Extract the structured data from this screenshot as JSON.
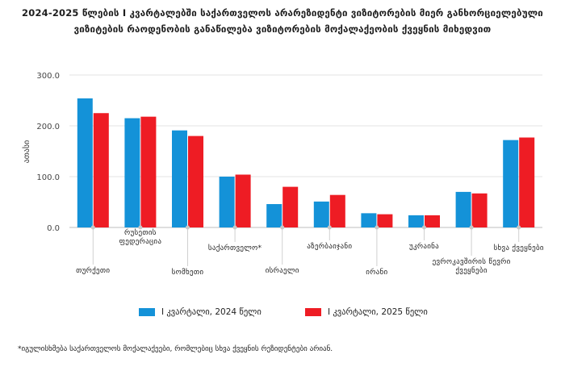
{
  "chart_data": {
    "type": "bar",
    "title": "2024-2025 წლების I კვარტალებში საქართველოს არარეზიდენტი ვიზიტორების მიერ განხორციელებული ვიზიტების რაოდენობის განაწილება ვიზიტორების მოქალაქეობის ქვეყნის მიხედვით",
    "ylabel": "ათასი",
    "ylim": [
      0,
      300
    ],
    "yticks": [
      "0.0",
      "100.0",
      "200.0",
      "300.0"
    ],
    "grid": true,
    "categories": [
      "თურქეთი",
      "რუსეთის ფედერაცია",
      "სომხეთი",
      "საქართველო*",
      "ისრაელი",
      "აზერბაიჯანი",
      "ირანი",
      "უკრაინა",
      "ევროკავშირის წევრი ქვეყნები",
      "სხვა ქვეყნები"
    ],
    "series": [
      {
        "name": "I კვარტალი, 2024 წელი",
        "color": "#1492d8",
        "values": [
          254,
          215,
          191,
          100,
          46,
          51,
          28,
          24,
          70,
          172
        ]
      },
      {
        "name": "I კვარტალი, 2025 წელი",
        "color": "#ee1c24",
        "values": [
          225,
          218,
          180,
          104,
          80,
          64,
          26,
          24,
          67,
          177
        ]
      }
    ],
    "legend_position": "bottom"
  },
  "footnote": "*იგულისხმება საქართველოს მოქალაქეები, რომლებიც სხვა ქვეყნის რეზიდენტები არიან."
}
